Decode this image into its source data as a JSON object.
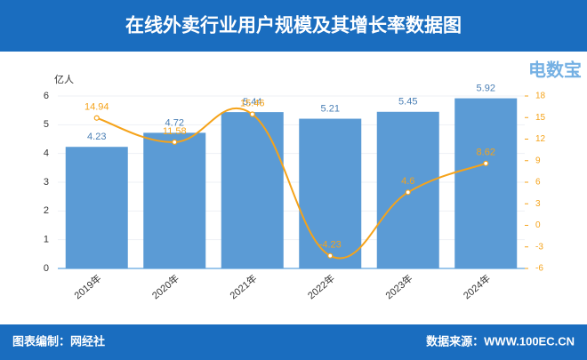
{
  "chart_data": {
    "type": "bar-line",
    "title": "在线外卖行业用户规模及其增长率数据图",
    "y_label": "亿人",
    "categories": [
      "2019年",
      "2020年",
      "2021年",
      "2022年",
      "2023年",
      "2024年"
    ],
    "series": [
      {
        "type": "bar",
        "color": "#5b9bd5",
        "values": [
          4.23,
          4.72,
          5.44,
          5.21,
          5.45,
          5.92
        ]
      },
      {
        "type": "line",
        "axis": "y2",
        "color": "#f5a31a",
        "values": [
          14.94,
          11.58,
          15.46,
          -4.23,
          4.6,
          8.62
        ]
      }
    ],
    "ylim": [
      0,
      6
    ],
    "yticks": [
      0,
      1,
      2,
      3,
      4,
      5,
      6
    ],
    "y2lim": [
      -6,
      18
    ],
    "y2ticks": [
      -6,
      -3,
      0,
      3,
      6,
      9,
      12,
      15,
      18
    ],
    "grid": true
  },
  "logo": {
    "text": "电数宝"
  },
  "footer": {
    "credit": "图表编制：网经社",
    "source": "数据来源：WWW.100EC.CN"
  }
}
